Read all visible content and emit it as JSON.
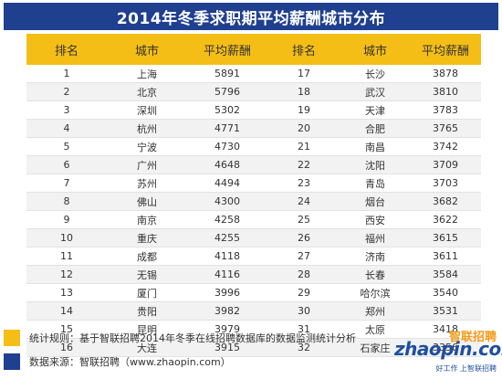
{
  "title": "2014年冬季求职期平均薪酬城市分布",
  "headers": [
    "排名",
    "城市",
    "平均薪酬",
    "排名",
    "城市",
    "平均薪酬"
  ],
  "rows": [
    [
      "1",
      "上海",
      "5891",
      "17",
      "长沙",
      "3878"
    ],
    [
      "2",
      "北京",
      "5796",
      "18",
      "武汉",
      "3810"
    ],
    [
      "3",
      "深圳",
      "5302",
      "19",
      "天津",
      "3783"
    ],
    [
      "4",
      "杭州",
      "4771",
      "20",
      "合肥",
      "3765"
    ],
    [
      "5",
      "宁波",
      "4730",
      "21",
      "南昌",
      "3742"
    ],
    [
      "6",
      "广州",
      "4648",
      "22",
      "沈阳",
      "3709"
    ],
    [
      "7",
      "苏州",
      "4494",
      "23",
      "青岛",
      "3703"
    ],
    [
      "8",
      "佛山",
      "4300",
      "24",
      "烟台",
      "3682"
    ],
    [
      "9",
      "南京",
      "4258",
      "25",
      "西安",
      "3622"
    ],
    [
      "10",
      "重庆",
      "4255",
      "26",
      "福州",
      "3615"
    ],
    [
      "11",
      "成都",
      "4118",
      "27",
      "济南",
      "3611"
    ],
    [
      "12",
      "无锡",
      "4116",
      "28",
      "长春",
      "3584"
    ],
    [
      "13",
      "厦门",
      "3996",
      "29",
      "哈尔滨",
      "3540"
    ],
    [
      "14",
      "贵阳",
      "3982",
      "30",
      "郑州",
      "3531"
    ],
    [
      "15",
      "昆明",
      "3979",
      "31",
      "太原",
      "3418"
    ],
    [
      "16",
      "大连",
      "3915",
      "32",
      "石家庄",
      "3356"
    ]
  ],
  "footnotes": [
    {
      "text": "统计规则：基于智联招聘2014年冬季在线招聘数据库的数据监测统计分析",
      "color": "#f5be16"
    },
    {
      "text": "数据来源：智联招聘（www.zhaopin.com）",
      "color": "#1f3f8f"
    }
  ],
  "logo": {
    "brand": "智联招聘",
    "domain": "zhaopin.com",
    "slogan": "好工作 上智联招聘"
  },
  "colors": {
    "title_bg": "#1f3f8f",
    "header_bg": "#f5be16",
    "row_alt": "#f2f2f2"
  }
}
